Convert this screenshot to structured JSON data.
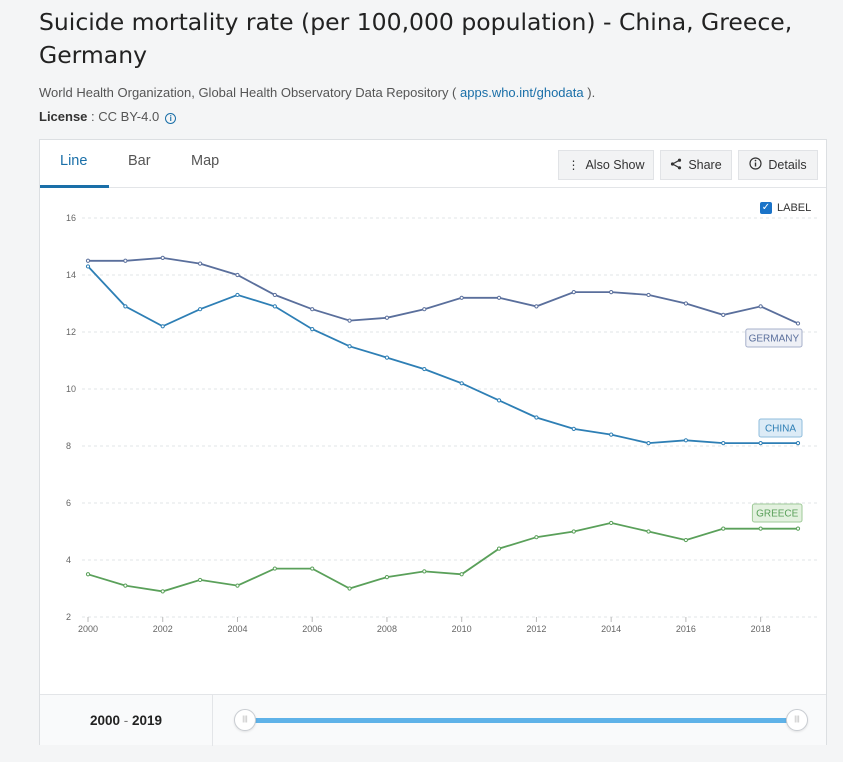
{
  "header": {
    "title": "Suicide mortality rate (per 100,000 population) - China, Greece, Germany",
    "source_text": "World Health Organization, Global Health Observatory Data Repository ( ",
    "source_link": "apps.who.int/ghodata",
    "source_end": " ).",
    "license_label": "License",
    "license_value": " : CC BY-4.0"
  },
  "tabs": [
    {
      "label": "Line",
      "active": true
    },
    {
      "label": "Bar",
      "active": false
    },
    {
      "label": "Map",
      "active": false
    }
  ],
  "toolbar": {
    "also_show": "Also Show",
    "share": "Share",
    "details": "Details"
  },
  "label_toggle": {
    "label": "LABEL",
    "checked": true
  },
  "footer": {
    "range_start": "2000",
    "range_sep": "-",
    "range_end": "2019"
  },
  "colors": {
    "China": "#2e7fb5",
    "Germany": "#5a6f9c",
    "Greece": "#5aa05a",
    "accent": "#1a6fa8"
  },
  "chart_data": {
    "type": "line",
    "title": "Suicide mortality rate (per 100,000 population) - China, Greece, Germany",
    "xlabel": "",
    "ylabel": "",
    "x": [
      2000,
      2001,
      2002,
      2003,
      2004,
      2005,
      2006,
      2007,
      2008,
      2009,
      2010,
      2011,
      2012,
      2013,
      2014,
      2015,
      2016,
      2017,
      2018,
      2019
    ],
    "x_ticks": [
      2000,
      2002,
      2004,
      2006,
      2008,
      2010,
      2012,
      2014,
      2016,
      2018
    ],
    "y_ticks": [
      2,
      4,
      6,
      8,
      10,
      12,
      14,
      16
    ],
    "ylim": [
      2,
      16
    ],
    "xlim": [
      2000,
      2019
    ],
    "grid": true,
    "series": [
      {
        "name": "GERMANY",
        "key": "Germany",
        "values": [
          14.5,
          14.5,
          14.6,
          14.4,
          14.0,
          13.3,
          12.8,
          12.4,
          12.5,
          12.8,
          13.2,
          13.2,
          12.9,
          13.4,
          13.4,
          13.3,
          13.0,
          12.6,
          12.9,
          12.3
        ]
      },
      {
        "name": "CHINA",
        "key": "China",
        "values": [
          14.3,
          12.9,
          12.2,
          12.8,
          13.3,
          12.9,
          12.1,
          11.5,
          11.1,
          10.7,
          10.2,
          9.6,
          9.0,
          8.6,
          8.4,
          8.1,
          8.2,
          8.1,
          8.1,
          8.1
        ]
      },
      {
        "name": "GREECE",
        "key": "Greece",
        "values": [
          3.5,
          3.1,
          2.9,
          3.3,
          3.1,
          3.7,
          3.7,
          3.0,
          3.4,
          3.6,
          3.5,
          4.4,
          4.8,
          5.0,
          5.3,
          5.0,
          4.7,
          5.1,
          5.1,
          5.1
        ]
      }
    ]
  }
}
